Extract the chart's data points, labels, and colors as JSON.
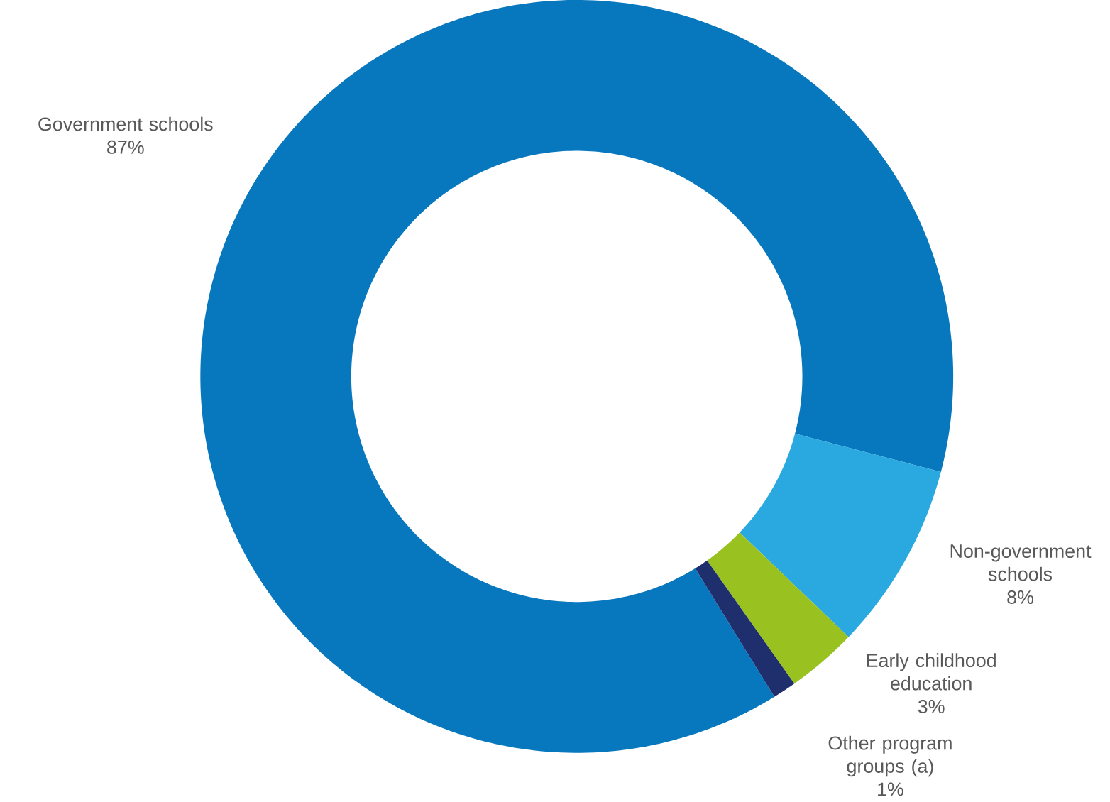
{
  "chart_data": {
    "type": "donut",
    "categories": [
      "Government schools",
      "Non-government schools",
      "Early childhood education",
      "Other program groups (a)"
    ],
    "values": [
      87,
      8,
      3,
      1
    ],
    "value_labels": [
      "87%",
      "8%",
      "3%",
      "1%"
    ],
    "colors": [
      "#0878be",
      "#29a9e0",
      "#99c221",
      "#1f2f6e"
    ]
  }
}
